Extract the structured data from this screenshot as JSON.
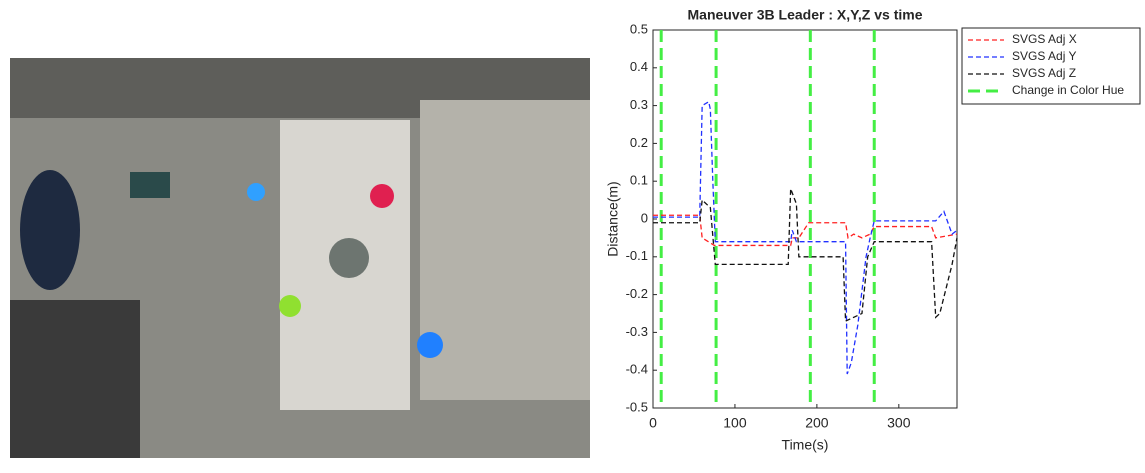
{
  "chart_data": {
    "type": "line",
    "title": "Maneuver 3B Leader : X,Y,Z vs time",
    "x_label": "Time(s)",
    "y_label": "Distance(m)",
    "xlim": [
      0,
      371
    ],
    "ylim": [
      -0.5,
      0.5
    ],
    "xticks": [
      0,
      100,
      200,
      300
    ],
    "yticks": [
      0.5,
      0.4,
      0.3,
      0.2,
      0.1,
      0,
      -0.1,
      -0.2,
      -0.3,
      -0.4,
      -0.5
    ],
    "legend": "outside-upper-right",
    "series": [
      {
        "name": "SVGS Adj X",
        "color": "#ff2020",
        "x": [
          0,
          57,
          60,
          75,
          168,
          170,
          178,
          190,
          235,
          238,
          245,
          255,
          265,
          270,
          340,
          345,
          371
        ],
        "values": [
          0.01,
          0.01,
          -0.05,
          -0.07,
          -0.07,
          -0.05,
          -0.05,
          -0.01,
          -0.01,
          -0.05,
          -0.04,
          -0.05,
          -0.04,
          -0.02,
          -0.02,
          -0.05,
          -0.04
        ]
      },
      {
        "name": "SVGS Adj Y",
        "color": "#2030ff",
        "x": [
          0,
          57,
          60,
          68,
          70,
          73,
          76,
          168,
          170,
          175,
          235,
          237,
          242,
          250,
          260,
          265,
          270,
          345,
          355,
          365,
          371
        ],
        "values": [
          0.005,
          0.005,
          0.3,
          0.31,
          0.29,
          0.1,
          -0.06,
          -0.06,
          -0.03,
          -0.06,
          -0.06,
          -0.41,
          -0.38,
          -0.28,
          -0.1,
          -0.05,
          -0.005,
          -0.005,
          0.02,
          -0.04,
          -0.03
        ]
      },
      {
        "name": "SVGS Adj Z",
        "color": "#111111",
        "x": [
          0,
          57,
          60,
          70,
          76,
          165,
          168,
          175,
          178,
          232,
          235,
          245,
          255,
          262,
          270,
          340,
          345,
          350,
          365,
          371
        ],
        "values": [
          -0.01,
          -0.01,
          0.05,
          0.03,
          -0.12,
          -0.12,
          0.08,
          0.04,
          -0.1,
          -0.1,
          -0.27,
          -0.26,
          -0.25,
          -0.1,
          -0.06,
          -0.06,
          -0.26,
          -0.25,
          -0.12,
          -0.05
        ]
      }
    ],
    "markers": {
      "name": "Change in Color Hue",
      "color": "#44ee44",
      "x": [
        10,
        77,
        192,
        270
      ]
    }
  }
}
